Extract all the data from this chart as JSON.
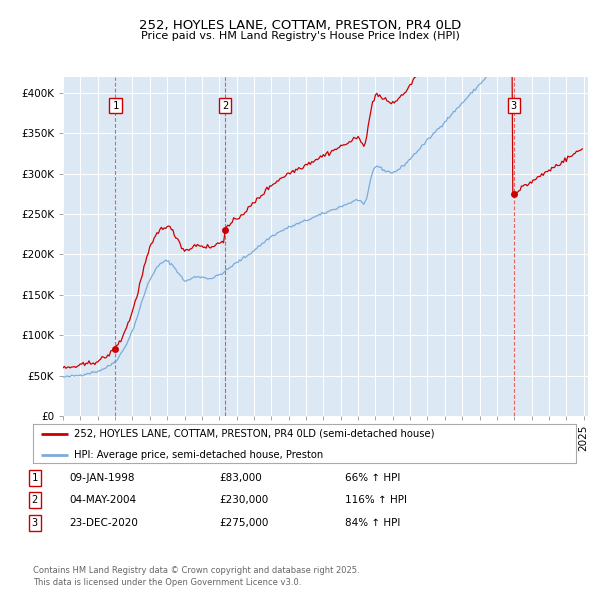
{
  "title": "252, HOYLES LANE, COTTAM, PRESTON, PR4 0LD",
  "subtitle": "Price paid vs. HM Land Registry's House Price Index (HPI)",
  "legend_line1": "252, HOYLES LANE, COTTAM, PRESTON, PR4 0LD (semi-detached house)",
  "legend_line2": "HPI: Average price, semi-detached house, Preston",
  "sale_color": "#cc0000",
  "hpi_color": "#7aabdb",
  "background_color": "#dce9f5",
  "ylabel": "",
  "ylim": [
    0,
    420000
  ],
  "yticks": [
    0,
    50000,
    100000,
    150000,
    200000,
    250000,
    300000,
    350000,
    400000
  ],
  "ytick_labels": [
    "£0",
    "£50K",
    "£100K",
    "£150K",
    "£200K",
    "£250K",
    "£300K",
    "£350K",
    "£400K"
  ],
  "purchases": [
    {
      "date": "1998-01-09",
      "price": 83000,
      "label": "1"
    },
    {
      "date": "2004-05-04",
      "price": 230000,
      "label": "2"
    },
    {
      "date": "2020-12-23",
      "price": 275000,
      "label": "3"
    }
  ],
  "table_rows": [
    {
      "num": "1",
      "date": "09-JAN-1998",
      "price": "£83,000",
      "hpi": "66% ↑ HPI"
    },
    {
      "num": "2",
      "date": "04-MAY-2004",
      "price": "£230,000",
      "hpi": "116% ↑ HPI"
    },
    {
      "num": "3",
      "date": "23-DEC-2020",
      "price": "£275,000",
      "hpi": "84% ↑ HPI"
    }
  ],
  "footer": "Contains HM Land Registry data © Crown copyright and database right 2025.\nThis data is licensed under the Open Government Licence v3.0.",
  "hpi_index": [
    100.0,
    100.3,
    100.6,
    101.0,
    101.5,
    102.0,
    102.5,
    103.0,
    103.5,
    104.0,
    104.5,
    105.0,
    105.8,
    106.5,
    107.2,
    108.0,
    108.8,
    109.6,
    110.4,
    111.2,
    112.0,
    112.8,
    113.6,
    114.4,
    115.5,
    116.8,
    118.2,
    119.8,
    121.5,
    123.3,
    125.2,
    127.2,
    129.5,
    132.0,
    134.8,
    137.8,
    141.0,
    145.0,
    149.5,
    154.5,
    160.0,
    166.0,
    172.5,
    179.5,
    187.0,
    195.0,
    203.0,
    211.0,
    220.0,
    230.0,
    240.5,
    251.5,
    263.0,
    275.0,
    287.0,
    299.0,
    311.0,
    322.0,
    332.5,
    342.0,
    350.5,
    358.0,
    365.0,
    371.5,
    377.0,
    382.0,
    386.5,
    390.5,
    394.0,
    396.5,
    398.5,
    399.5,
    399.0,
    397.5,
    394.5,
    391.5,
    387.5,
    383.0,
    378.5,
    373.5,
    368.0,
    362.5,
    357.0,
    352.5,
    349.5,
    348.5,
    349.0,
    350.5,
    352.5,
    354.5,
    356.5,
    358.0,
    359.0,
    359.5,
    359.5,
    359.0,
    358.0,
    357.0,
    356.5,
    356.0,
    355.5,
    355.0,
    355.0,
    355.5,
    356.5,
    358.0,
    360.0,
    362.0,
    364.0,
    366.0,
    368.0,
    370.0,
    372.5,
    375.5,
    378.5,
    381.5,
    384.5,
    387.5,
    390.0,
    392.5,
    395.0,
    397.5,
    400.0,
    402.5,
    405.0,
    407.5,
    410.0,
    412.5,
    415.0,
    418.0,
    421.0,
    424.0,
    427.0,
    430.0,
    433.0,
    436.0,
    439.0,
    442.0,
    445.0,
    448.0,
    451.0,
    454.0,
    457.0,
    460.0,
    462.5,
    465.0,
    467.0,
    469.0,
    471.0,
    473.0,
    475.0,
    477.0,
    479.0,
    481.0,
    483.0,
    484.5,
    486.0,
    487.5,
    489.0,
    490.5,
    492.0,
    493.5,
    495.0,
    496.5,
    498.0,
    499.5,
    501.0,
    502.5,
    504.0,
    505.5,
    507.0,
    508.5,
    510.0,
    511.5,
    513.0,
    514.5,
    516.0,
    517.5,
    519.0,
    520.5,
    522.0,
    523.5,
    525.0,
    526.5,
    528.0,
    529.5,
    531.0,
    532.5,
    534.0,
    535.5,
    537.0,
    538.5,
    540.0,
    541.5,
    543.0,
    544.5,
    546.0,
    547.5,
    549.0,
    550.5,
    552.0,
    553.5,
    555.0,
    556.5,
    557.5,
    557.0,
    554.0,
    549.0,
    545.0,
    548.0,
    560.0,
    578.0,
    597.0,
    614.0,
    628.0,
    637.0,
    643.0,
    645.0,
    644.0,
    641.0,
    638.0,
    636.0,
    634.0,
    632.5,
    631.0,
    630.0,
    629.0,
    628.0,
    628.5,
    629.5,
    631.0,
    633.0,
    635.5,
    638.5,
    641.5,
    644.5,
    648.0,
    651.5,
    655.0,
    659.0,
    663.0,
    667.0,
    671.0,
    675.0,
    679.0,
    683.0,
    687.0,
    691.0,
    695.0,
    699.0,
    703.0,
    707.0
  ],
  "hpi_base_value": 48000
}
